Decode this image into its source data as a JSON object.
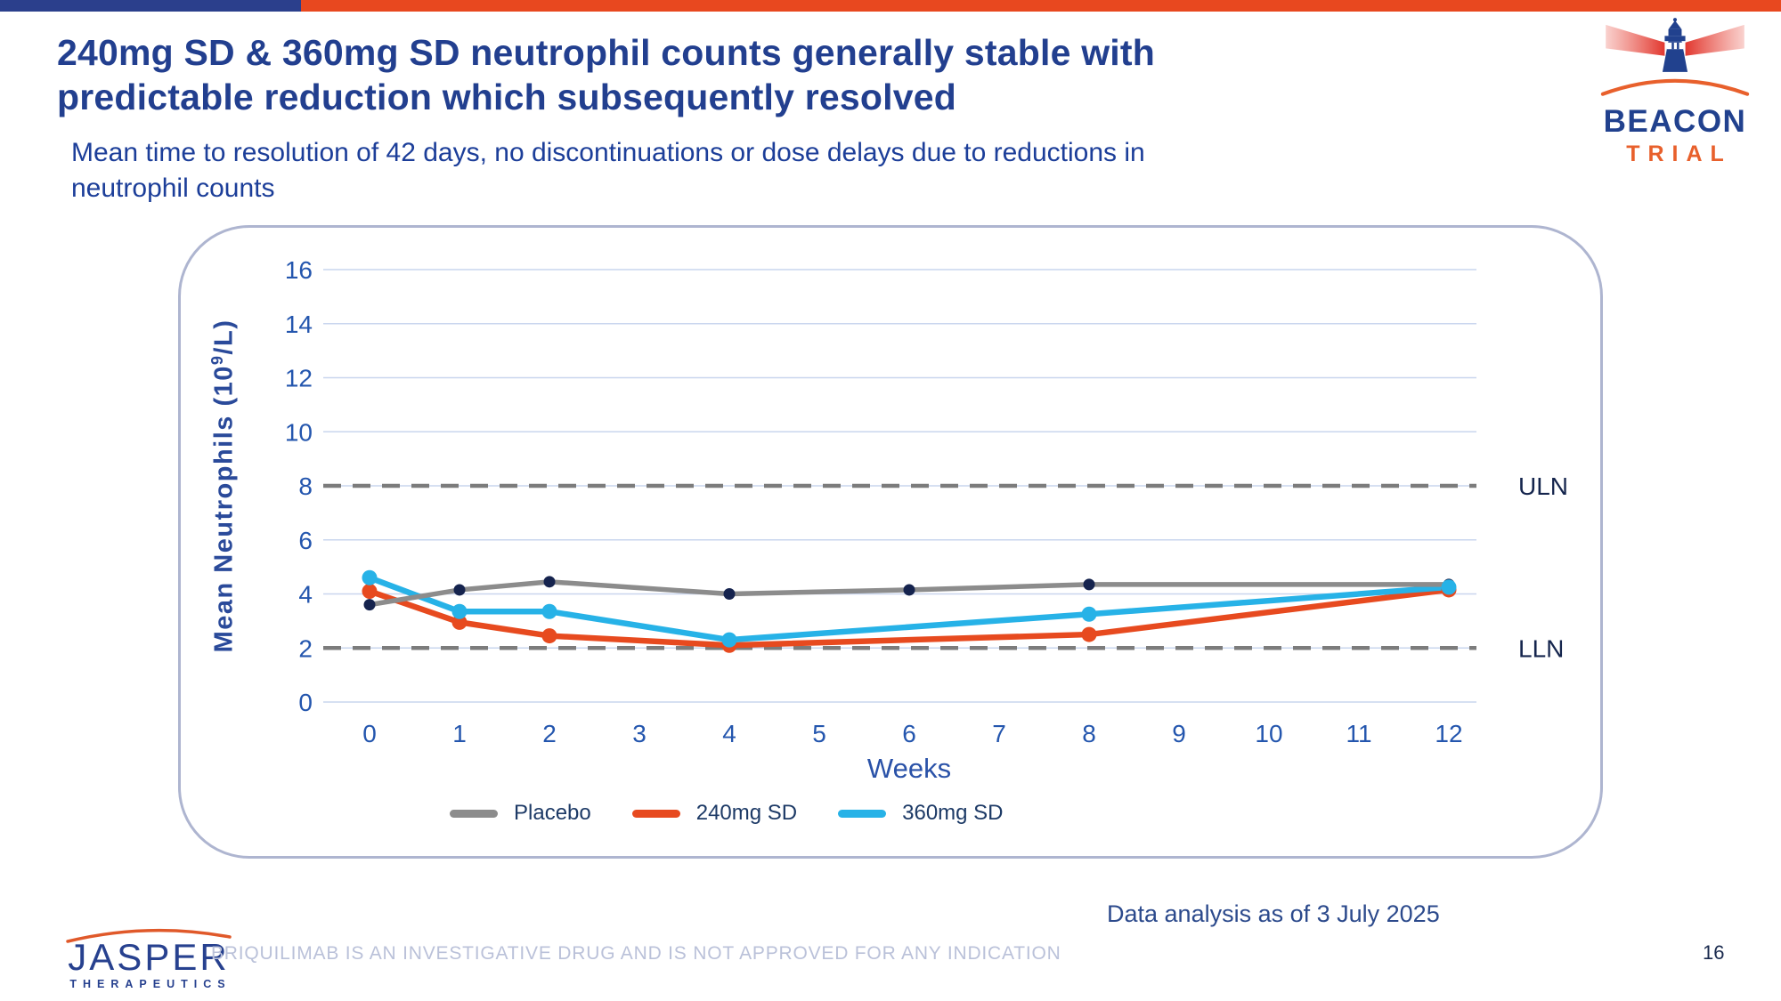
{
  "header": {
    "title_lines": [
      "240mg SD & 360mg SD neutrophil counts generally stable with",
      "predictable reduction which subsequently resolved"
    ],
    "subtitle_lines": [
      "Mean time to resolution of 42 days, no discontinuations or dose delays due to reductions in",
      "neutrophil counts"
    ]
  },
  "beacon_logo": {
    "name": "BEACON",
    "sub": "TRIAL"
  },
  "colors": {
    "topbar_blue": "#2B3F8C",
    "topbar_orange": "#E8481F",
    "title_blue": "#223F8F",
    "tick_blue": "#2456AE",
    "gridline": "#C9D6EE",
    "dashed_reference": "#7C7C7C",
    "placebo_line": "#8C8C8C",
    "placebo_marker": "#15234E",
    "dose240_line": "#E74A1F",
    "dose360_line": "#27B2E7"
  },
  "chart_data": {
    "type": "line",
    "title": "",
    "xlabel": "Weeks",
    "ylabel": "Mean Neutrophils (10⁹/L)",
    "ylabel_parts": {
      "prefix": "Mean Neutrophils (10",
      "sup": "9",
      "suffix": "/L)"
    },
    "x_ticks": [
      0,
      1,
      2,
      3,
      4,
      5,
      6,
      7,
      8,
      9,
      10,
      11,
      12
    ],
    "y_ticks": [
      0,
      2,
      4,
      6,
      8,
      10,
      12,
      14,
      16
    ],
    "xlim": [
      -0.5,
      12.5
    ],
    "ylim": [
      0,
      16
    ],
    "grid": "horizontal",
    "legend_position": "bottom",
    "reference_lines": [
      {
        "label": "ULN",
        "value": 8
      },
      {
        "label": "LLN",
        "value": 2
      }
    ],
    "series": [
      {
        "name": "Placebo",
        "color": "#8C8C8C",
        "marker_color": "#15234E",
        "x": [
          0,
          1,
          2,
          4,
          6,
          8,
          12
        ],
        "values": [
          3.6,
          4.15,
          4.45,
          4.0,
          4.15,
          4.35,
          4.35
        ]
      },
      {
        "name": "240mg SD",
        "color": "#E74A1F",
        "marker_color": "#E74A1F",
        "x": [
          0,
          1,
          2,
          4,
          8,
          12
        ],
        "values": [
          4.1,
          2.95,
          2.45,
          2.1,
          2.5,
          4.15
        ]
      },
      {
        "name": "360mg SD",
        "color": "#27B2E7",
        "marker_color": "#27B2E7",
        "x": [
          0,
          1,
          2,
          4,
          8,
          12
        ],
        "values": [
          4.6,
          3.35,
          3.35,
          2.3,
          3.25,
          4.25
        ]
      }
    ]
  },
  "footer": {
    "jasper_logo": {
      "name": "JASPER",
      "sub": "THERAPEUTICS"
    },
    "disclaimer": "BRIQUILIMAB IS AN INVESTIGATIVE DRUG AND IS NOT APPROVED FOR ANY INDICATION",
    "data_note": "Data analysis as of 3 July 2025",
    "page_number": "16"
  }
}
